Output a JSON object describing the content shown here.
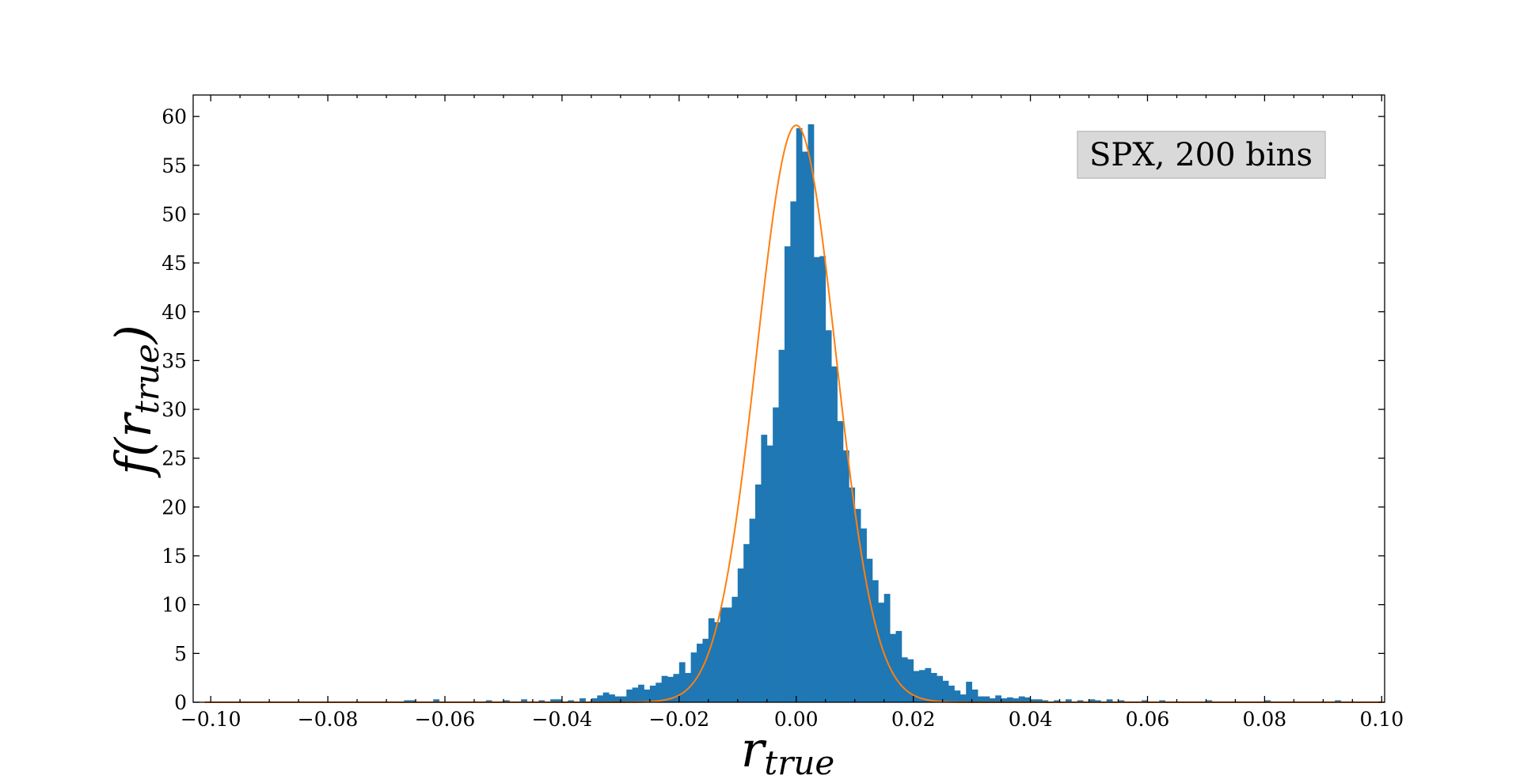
{
  "chart_data": {
    "type": "bar",
    "title": "",
    "annotation": "SPX, 200 bins",
    "xlabel": {
      "main": "r",
      "sub": "true"
    },
    "ylabel": {
      "func": "f(",
      "main": "r",
      "sub": "true",
      "close": ")"
    },
    "xlim": [
      -0.103,
      0.1005
    ],
    "ylim": [
      0,
      62.2
    ],
    "x_ticks": [
      -0.1,
      -0.08,
      -0.06,
      -0.04,
      -0.02,
      0.0,
      0.02,
      0.04,
      0.06,
      0.08,
      0.1
    ],
    "x_tick_labels": [
      "−0.10",
      "−0.08",
      "−0.06",
      "−0.04",
      "−0.02",
      "0.00",
      "0.02",
      "0.04",
      "0.06",
      "0.08",
      "0.10"
    ],
    "y_ticks": [
      0,
      5,
      10,
      15,
      20,
      25,
      30,
      35,
      40,
      45,
      50,
      55,
      60
    ],
    "y_tick_labels": [
      "0",
      "5",
      "10",
      "15",
      "20",
      "25",
      "30",
      "35",
      "40",
      "45",
      "50",
      "55",
      "60"
    ],
    "grid": false,
    "series": [
      {
        "kind": "histogram",
        "color": "#1f77b4",
        "bin_width": 0.001,
        "bins": [
          [
            -0.067,
            0.2
          ],
          [
            -0.066,
            0.2
          ],
          [
            -0.062,
            0.3
          ],
          [
            -0.053,
            0.2
          ],
          [
            -0.05,
            0.2
          ],
          [
            -0.047,
            0.3
          ],
          [
            -0.044,
            0.2
          ],
          [
            -0.042,
            0.3
          ],
          [
            -0.041,
            0.3
          ],
          [
            -0.039,
            0.2
          ],
          [
            -0.037,
            0.4
          ],
          [
            -0.035,
            0.4
          ],
          [
            -0.034,
            0.7
          ],
          [
            -0.033,
            1.0
          ],
          [
            -0.032,
            0.8
          ],
          [
            -0.031,
            0.6
          ],
          [
            -0.03,
            0.6
          ],
          [
            -0.029,
            1.3
          ],
          [
            -0.028,
            1.5
          ],
          [
            -0.027,
            1.8
          ],
          [
            -0.026,
            1.3
          ],
          [
            -0.025,
            1.7
          ],
          [
            -0.024,
            2.0
          ],
          [
            -0.023,
            2.7
          ],
          [
            -0.022,
            2.6
          ],
          [
            -0.021,
            2.9
          ],
          [
            -0.02,
            4.1
          ],
          [
            -0.019,
            3.0
          ],
          [
            -0.018,
            5.1
          ],
          [
            -0.017,
            6.0
          ],
          [
            -0.016,
            6.5
          ],
          [
            -0.015,
            8.6
          ],
          [
            -0.014,
            8.2
          ],
          [
            -0.013,
            9.7
          ],
          [
            -0.012,
            9.7
          ],
          [
            -0.011,
            10.8
          ],
          [
            -0.01,
            13.7
          ],
          [
            -0.009,
            16.2
          ],
          [
            -0.008,
            18.8
          ],
          [
            -0.007,
            22.3
          ],
          [
            -0.006,
            27.4
          ],
          [
            -0.005,
            26.3
          ],
          [
            -0.004,
            30.2
          ],
          [
            -0.003,
            36.1
          ],
          [
            -0.002,
            46.7
          ],
          [
            -0.001,
            51.3
          ],
          [
            0.0,
            58.8
          ],
          [
            0.001,
            56.4
          ],
          [
            0.002,
            59.2
          ],
          [
            0.003,
            45.6
          ],
          [
            0.004,
            45.7
          ],
          [
            0.005,
            38.1
          ],
          [
            0.006,
            34.4
          ],
          [
            0.007,
            28.8
          ],
          [
            0.008,
            25.8
          ],
          [
            0.009,
            22.0
          ],
          [
            0.01,
            19.8
          ],
          [
            0.011,
            17.8
          ],
          [
            0.012,
            14.7
          ],
          [
            0.013,
            12.5
          ],
          [
            0.014,
            10.2
          ],
          [
            0.015,
            11.1
          ],
          [
            0.016,
            7.0
          ],
          [
            0.017,
            7.3
          ],
          [
            0.018,
            4.6
          ],
          [
            0.019,
            4.4
          ],
          [
            0.02,
            3.2
          ],
          [
            0.021,
            3.3
          ],
          [
            0.022,
            3.5
          ],
          [
            0.023,
            3.0
          ],
          [
            0.024,
            2.7
          ],
          [
            0.025,
            2.2
          ],
          [
            0.026,
            1.7
          ],
          [
            0.027,
            1.2
          ],
          [
            0.028,
            0.8
          ],
          [
            0.029,
            2.1
          ],
          [
            0.03,
            1.3
          ],
          [
            0.031,
            0.6
          ],
          [
            0.032,
            0.6
          ],
          [
            0.033,
            0.4
          ],
          [
            0.034,
            0.7
          ],
          [
            0.035,
            0.4
          ],
          [
            0.036,
            0.5
          ],
          [
            0.037,
            0.4
          ],
          [
            0.038,
            0.6
          ],
          [
            0.039,
            0.5
          ],
          [
            0.04,
            0.3
          ],
          [
            0.041,
            0.3
          ],
          [
            0.042,
            0.2
          ],
          [
            0.044,
            0.2
          ],
          [
            0.046,
            0.3
          ],
          [
            0.048,
            0.2
          ],
          [
            0.05,
            0.3
          ],
          [
            0.051,
            0.2
          ],
          [
            0.053,
            0.3
          ],
          [
            0.055,
            0.2
          ],
          [
            0.059,
            0.2
          ],
          [
            0.062,
            0.2
          ],
          [
            0.07,
            0.2
          ],
          [
            0.08,
            0.2
          ],
          [
            0.092,
            0.2
          ]
        ]
      },
      {
        "kind": "gaussian_fit",
        "color": "#ff7f0e",
        "mean": 0.0,
        "std": 0.00675
      }
    ]
  }
}
